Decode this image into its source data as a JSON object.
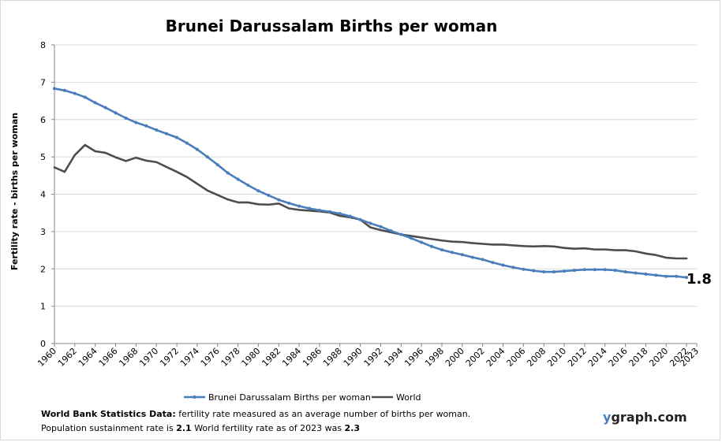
{
  "chart_data": {
    "type": "line",
    "title": "Brunei Darussalam Births per woman",
    "ylabel": "Fertility rate  - births per woman",
    "xlabel": "",
    "ylim": [
      0,
      8
    ],
    "xlim": [
      1960,
      2023
    ],
    "y_ticks": [
      "0",
      "1",
      "2",
      "3",
      "4",
      "5",
      "6",
      "7",
      "8"
    ],
    "x_ticks": [
      "1960",
      "1962",
      "1964",
      "1966",
      "1968",
      "1970",
      "1972",
      "1974",
      "1976",
      "1978",
      "1980",
      "1982",
      "1984",
      "1986",
      "1988",
      "1990",
      "1992",
      "1994",
      "1996",
      "1998",
      "2000",
      "2002",
      "2004",
      "2006",
      "2008",
      "2010",
      "2012",
      "2014",
      "2016",
      "2018",
      "2020",
      "2022",
      "2023"
    ],
    "grid": "horizontal",
    "legend_position": "bottom",
    "end_label": "1.8",
    "series": [
      {
        "name": "Brunei Darussalam Births per woman",
        "color": "#4a7ebb",
        "markers": true,
        "x": [
          1960,
          1961,
          1962,
          1963,
          1964,
          1965,
          1966,
          1967,
          1968,
          1969,
          1970,
          1971,
          1972,
          1973,
          1974,
          1975,
          1976,
          1977,
          1978,
          1979,
          1980,
          1981,
          1982,
          1983,
          1984,
          1985,
          1986,
          1987,
          1988,
          1989,
          1990,
          1991,
          1992,
          1993,
          1994,
          1995,
          1996,
          1997,
          1998,
          1999,
          2000,
          2001,
          2002,
          2003,
          2004,
          2005,
          2006,
          2007,
          2008,
          2009,
          2010,
          2011,
          2012,
          2013,
          2014,
          2015,
          2016,
          2017,
          2018,
          2019,
          2020,
          2021,
          2022
        ],
        "values": [
          6.83,
          6.78,
          6.7,
          6.6,
          6.45,
          6.32,
          6.18,
          6.04,
          5.92,
          5.83,
          5.72,
          5.62,
          5.52,
          5.37,
          5.2,
          5.0,
          4.79,
          4.57,
          4.4,
          4.24,
          4.09,
          3.97,
          3.85,
          3.76,
          3.68,
          3.62,
          3.57,
          3.53,
          3.48,
          3.41,
          3.32,
          3.22,
          3.13,
          3.02,
          2.92,
          2.82,
          2.71,
          2.6,
          2.51,
          2.44,
          2.38,
          2.31,
          2.25,
          2.17,
          2.1,
          2.04,
          1.99,
          1.95,
          1.92,
          1.92,
          1.94,
          1.96,
          1.98,
          1.98,
          1.98,
          1.96,
          1.92,
          1.89,
          1.86,
          1.83,
          1.8,
          1.8,
          1.77
        ]
      },
      {
        "name": "World",
        "color": "#4d4d4d",
        "markers": false,
        "x": [
          1960,
          1961,
          1962,
          1963,
          1964,
          1965,
          1966,
          1967,
          1968,
          1969,
          1970,
          1971,
          1972,
          1973,
          1974,
          1975,
          1976,
          1977,
          1978,
          1979,
          1980,
          1981,
          1982,
          1983,
          1984,
          1985,
          1986,
          1987,
          1988,
          1989,
          1990,
          1991,
          1992,
          1993,
          1994,
          1995,
          1996,
          1997,
          1998,
          1999,
          2000,
          2001,
          2002,
          2003,
          2004,
          2005,
          2006,
          2007,
          2008,
          2009,
          2010,
          2011,
          2012,
          2013,
          2014,
          2015,
          2016,
          2017,
          2018,
          2019,
          2020,
          2021,
          2022
        ],
        "values": [
          4.72,
          4.6,
          5.05,
          5.32,
          5.15,
          5.11,
          4.99,
          4.89,
          4.98,
          4.9,
          4.86,
          4.73,
          4.6,
          4.46,
          4.28,
          4.1,
          3.98,
          3.86,
          3.78,
          3.78,
          3.73,
          3.72,
          3.75,
          3.62,
          3.58,
          3.56,
          3.54,
          3.51,
          3.42,
          3.38,
          3.32,
          3.11,
          3.04,
          2.98,
          2.92,
          2.88,
          2.84,
          2.8,
          2.76,
          2.73,
          2.72,
          2.69,
          2.67,
          2.65,
          2.65,
          2.63,
          2.61,
          2.6,
          2.61,
          2.6,
          2.56,
          2.54,
          2.55,
          2.52,
          2.52,
          2.5,
          2.5,
          2.47,
          2.41,
          2.37,
          2.3,
          2.28,
          2.28
        ]
      }
    ]
  },
  "footer": {
    "source_label": "World Bank Statistics Data:",
    "source_text": " fertility rate measured as an average number  of births per woman.",
    "line2_prefix": "Population sustainment rate is ",
    "sustainment_rate": "2.1",
    "line2_middle": "   World fertility rate as of 2023 was ",
    "world_rate": "2.3"
  },
  "brand": {
    "first_letter": "y",
    "rest": "graph.com"
  }
}
